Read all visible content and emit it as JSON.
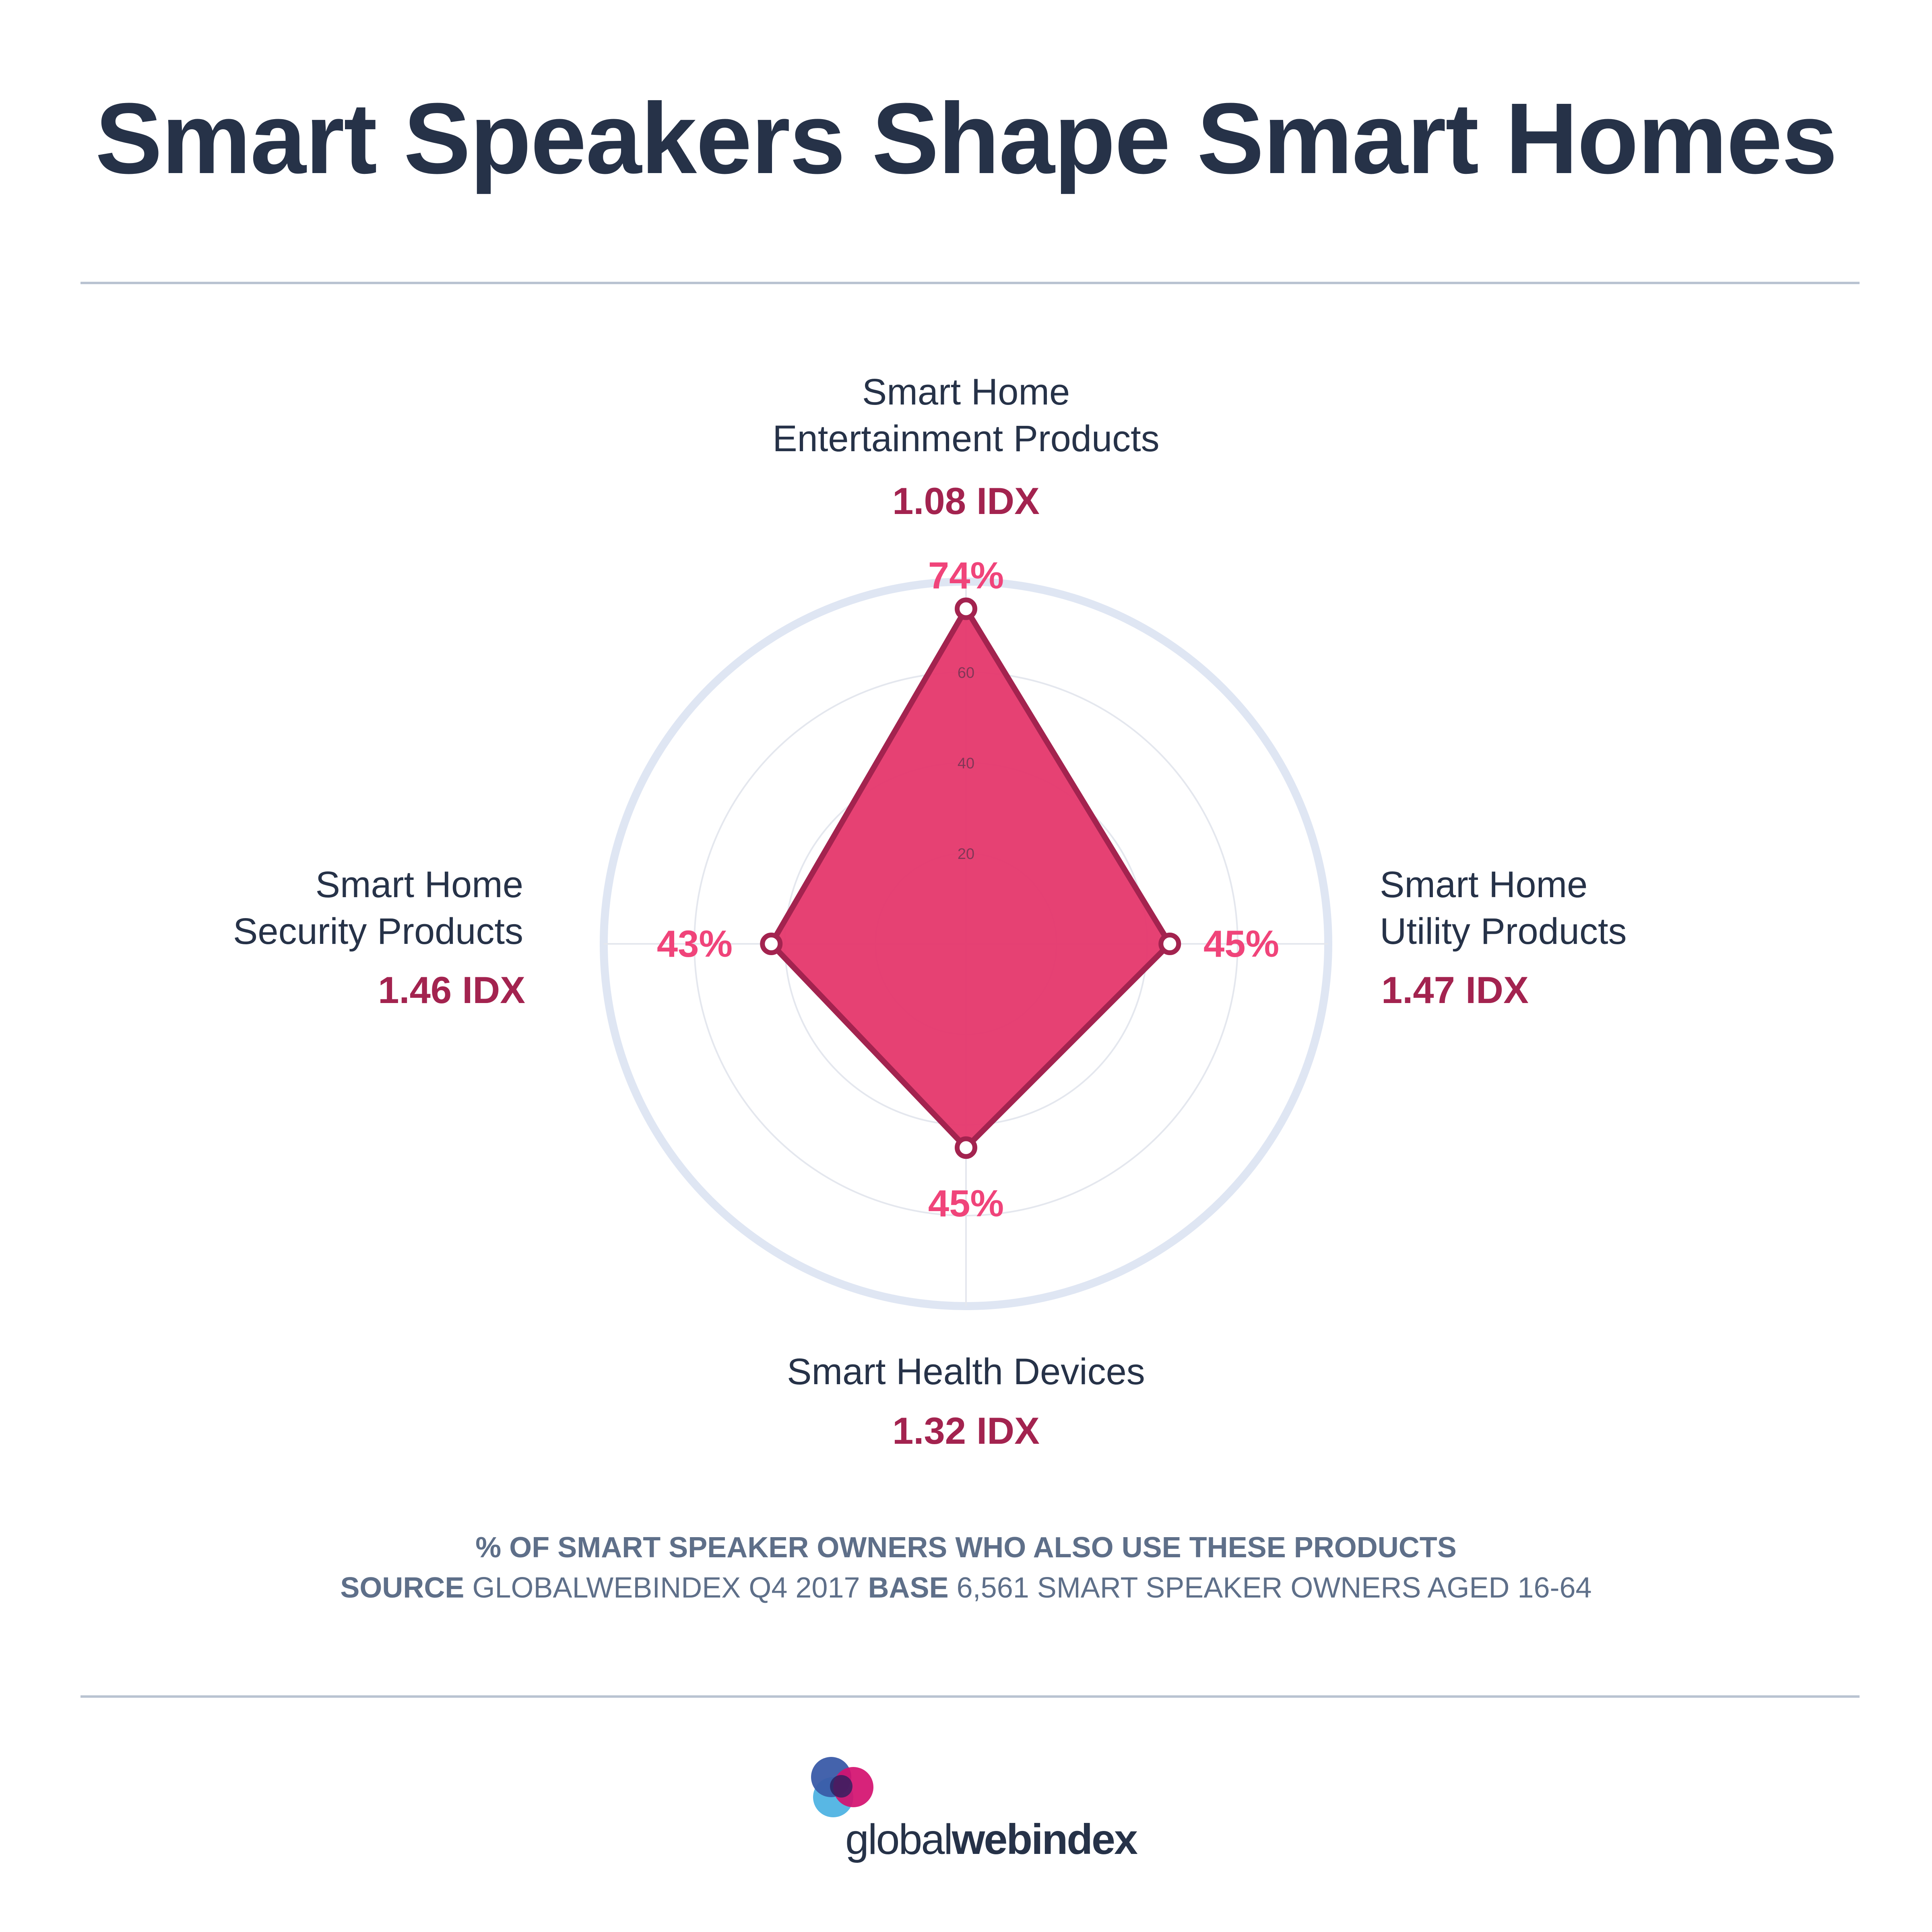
{
  "title": "Smart Speakers Shape Smart Homes",
  "colors": {
    "title": "#263248",
    "fill": "#e5396d",
    "stroke": "#a3234f",
    "percent": "#f0447a",
    "idx": "#a3234f",
    "outer_ring": "#dfe6f3",
    "grid": "#e4e7ee",
    "footnote": "#5e6f89"
  },
  "chart_data": {
    "type": "radar",
    "rmax": 80,
    "grid_rings": [
      20,
      40,
      60
    ],
    "categories": [
      {
        "name_lines": [
          "Smart Home",
          "Entertainment Products"
        ],
        "value": 74,
        "percent_label": "74%",
        "idx_label": "1.08 IDX"
      },
      {
        "name_lines": [
          "Smart Home",
          "Utility Products"
        ],
        "value": 45,
        "percent_label": "45%",
        "idx_label": "1.47 IDX"
      },
      {
        "name_lines": [
          "Smart Health Devices"
        ],
        "value": 45,
        "percent_label": "45%",
        "idx_label": "1.32 IDX"
      },
      {
        "name_lines": [
          "Smart Home",
          "Security Products"
        ],
        "value": 43,
        "percent_label": "43%",
        "idx_label": "1.46 IDX"
      }
    ],
    "tick_labels": [
      "20",
      "40",
      "60"
    ]
  },
  "footnote": {
    "line1": "% OF SMART SPEAKER OWNERS WHO ALSO USE THESE PRODUCTS",
    "source_label": "SOURCE",
    "source_text": "GLOBALWEBINDEX Q4 2017",
    "base_label": "BASE",
    "base_text": "6,561 SMART SPEAKER OWNERS AGED 16-64"
  },
  "logo": {
    "text_light": "global",
    "text_bold": "webindex"
  }
}
